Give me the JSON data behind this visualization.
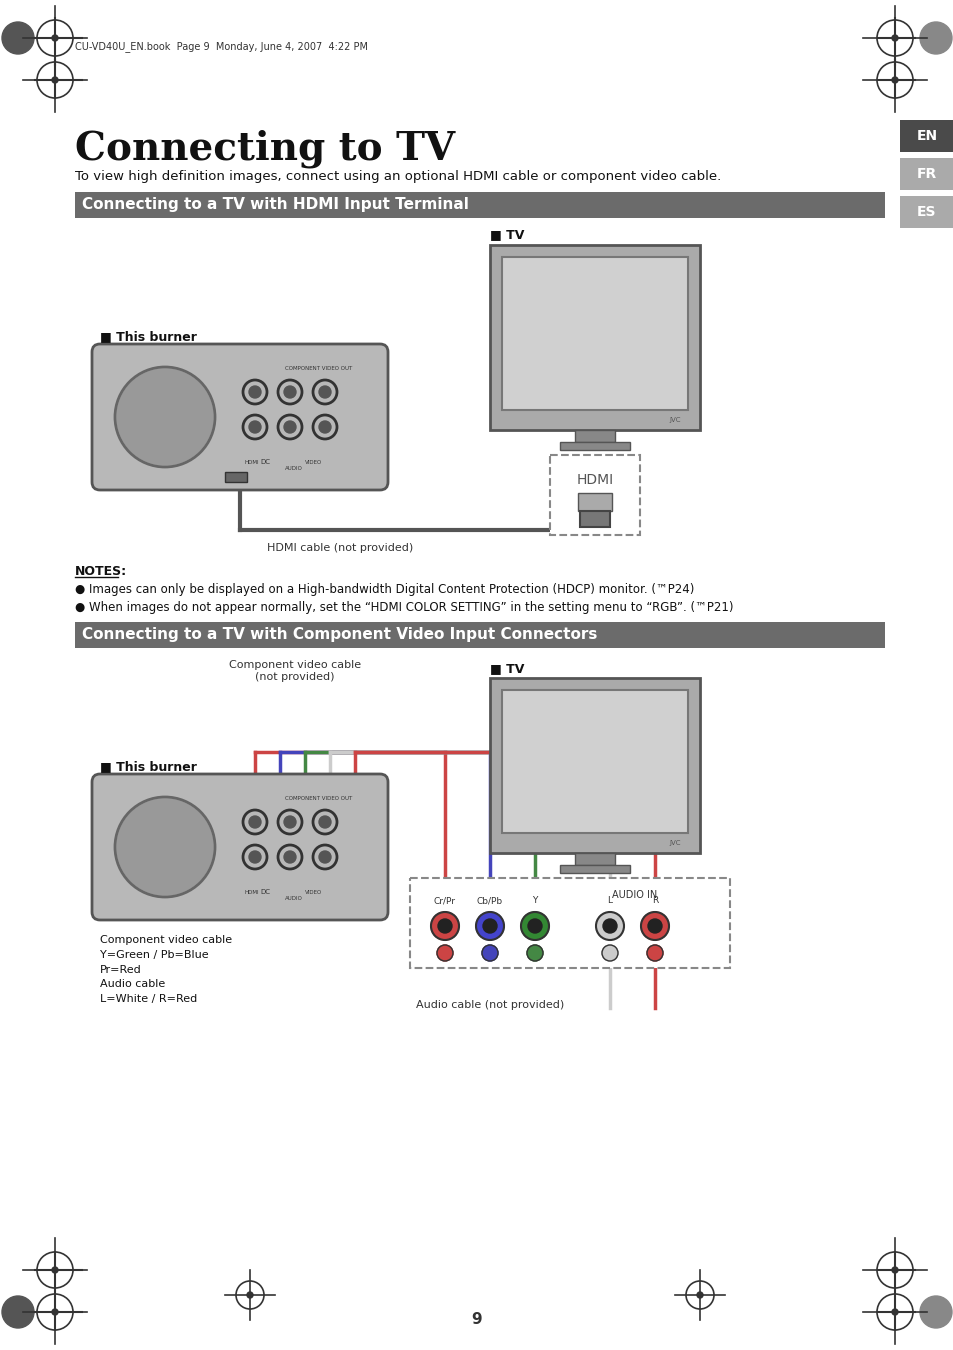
{
  "page_bg": "#ffffff",
  "title": "Connecting to TV",
  "subtitle": "To view high definition images, connect using an optional HDMI cable or component video cable.",
  "section1_title": "Connecting to a TV with HDMI Input Terminal",
  "section2_title": "Connecting to a TV with Component Video Input Connectors",
  "section_title_bg": "#6b6b6b",
  "section_title_color": "#ffffff",
  "lang_tabs": [
    "EN",
    "FR",
    "ES"
  ],
  "lang_tab_colors": [
    "#4a4a4a",
    "#aaaaaa",
    "#aaaaaa"
  ],
  "lang_tab_text_color": "#ffffff",
  "header_text": "CU-VD40U_EN.book  Page 9  Monday, June 4, 2007  4:22 PM",
  "notes_title": "NOTES:",
  "note1": "Images can only be displayed on a High-bandwidth Digital Content Protection (HDCP) monitor. (™P24)",
  "note2": "When images do not appear normally, set the “HDMI COLOR SETTING” in the setting menu to “RGB”. (™P21)",
  "this_burner_label": "■ This burner",
  "tv_label1": "■ TV",
  "tv_label2": "■ TV",
  "hdmi_cable_label": "HDMI cable (not provided)",
  "hdmi_label": "HDMI",
  "component_cable_label": "Component video cable\n(not provided)",
  "audio_cable_label": "Audio cable (not provided)",
  "component_note": "Component video cable\nY=Green / Pb=Blue\nPr=Red\nAudio cable\nL=White / R=Red",
  "audio_in_label": "AUDIO IN",
  "page_number": "9",
  "burner_color": "#b0b0b0",
  "tv_color": "#c0c0c0",
  "tv_screen_color": "#d8d8d8",
  "tv_frame_color": "#909090",
  "cable_color": "#555555",
  "dashed_box_color": "#888888",
  "connector_color": "#888888"
}
